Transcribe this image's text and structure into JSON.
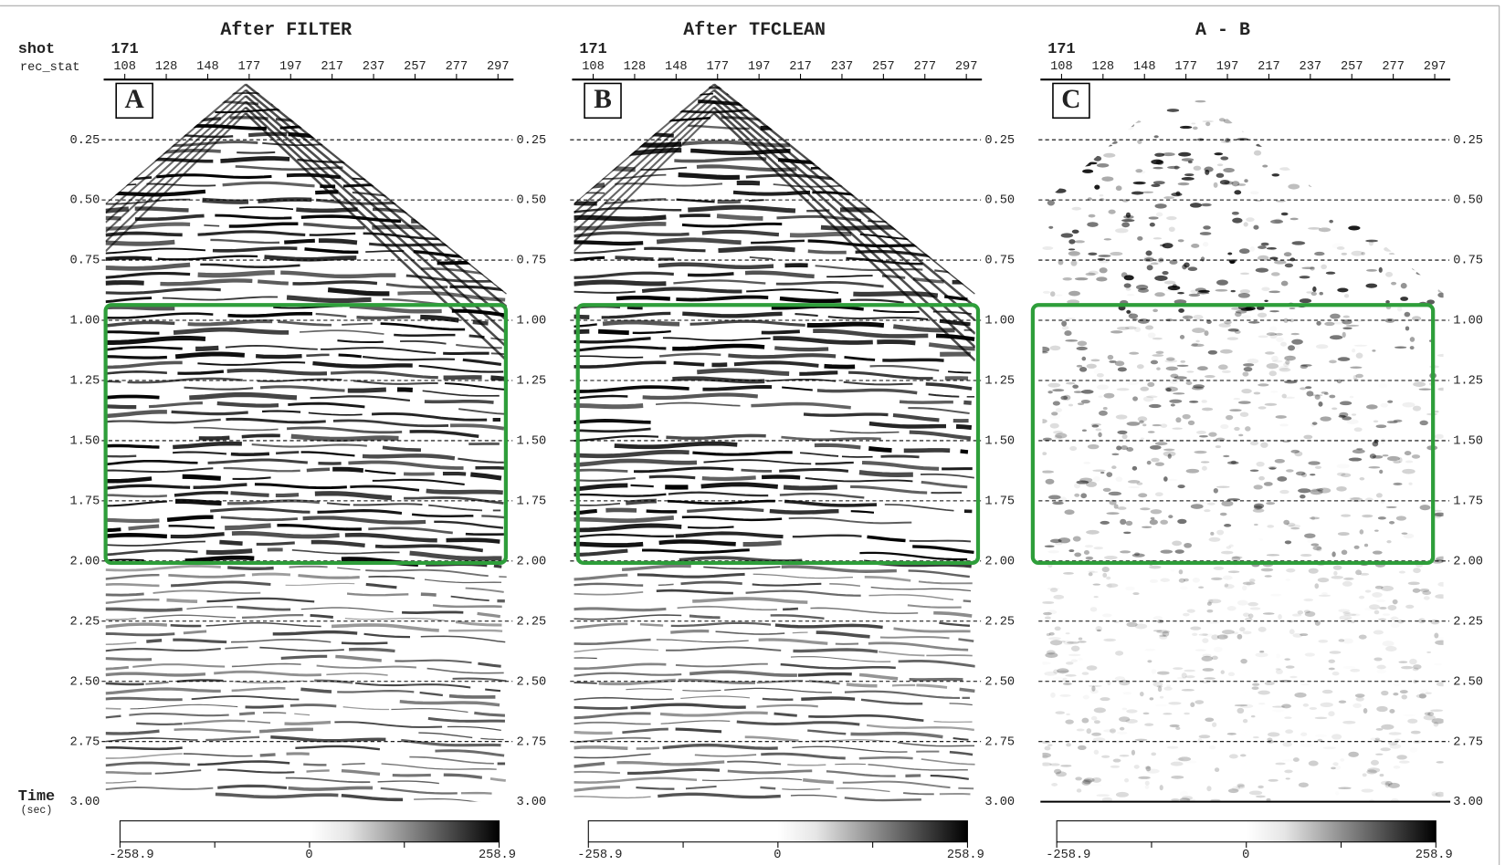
{
  "axis": {
    "shot_label": "shot",
    "rec_label": "rec_stat",
    "time_label": "Time",
    "time_unit": "(sec)"
  },
  "panels": [
    {
      "title": "After FILTER",
      "label": "A",
      "shot": "171",
      "x_ticks": [
        "108",
        "128",
        "148",
        "177",
        "197",
        "217",
        "237",
        "257",
        "277",
        "297"
      ],
      "left_ticks": [
        "0.25",
        "0.50",
        "0.75",
        "1.00",
        "1.25",
        "1.50",
        "1.75",
        "2.00",
        "2.25",
        "2.50",
        "2.75",
        "3.00"
      ],
      "right_ticks": [
        "0.25",
        "0.50",
        "0.75",
        "1.00",
        "1.25",
        "1.50",
        "1.75",
        "2.00",
        "2.25",
        "2.50",
        "2.75",
        "3.00"
      ],
      "colorbar": [
        "-258.9",
        "0",
        "258.9"
      ]
    },
    {
      "title": "After TFCLEAN",
      "label": "B",
      "shot": "171",
      "x_ticks": [
        "108",
        "128",
        "148",
        "177",
        "197",
        "217",
        "237",
        "257",
        "277",
        "297"
      ],
      "right_ticks": [
        "0.25",
        "0.50",
        "0.75",
        "1.00",
        "1.25",
        "1.50",
        "1.75",
        "2.00",
        "2.25",
        "2.50",
        "2.75",
        "3.00"
      ],
      "colorbar": [
        "-258.9",
        "0",
        "258.9"
      ]
    },
    {
      "title": "A - B",
      "label": "C",
      "shot": "171",
      "x_ticks": [
        "108",
        "128",
        "148",
        "177",
        "197",
        "217",
        "237",
        "257",
        "277",
        "297"
      ],
      "right_ticks": [
        "0.25",
        "0.50",
        "0.75",
        "1.00",
        "1.25",
        "1.50",
        "1.75",
        "2.00",
        "2.25",
        "2.50",
        "2.75",
        "3.00"
      ],
      "colorbar": [
        "-258.9",
        "0",
        "258.9"
      ]
    }
  ]
}
